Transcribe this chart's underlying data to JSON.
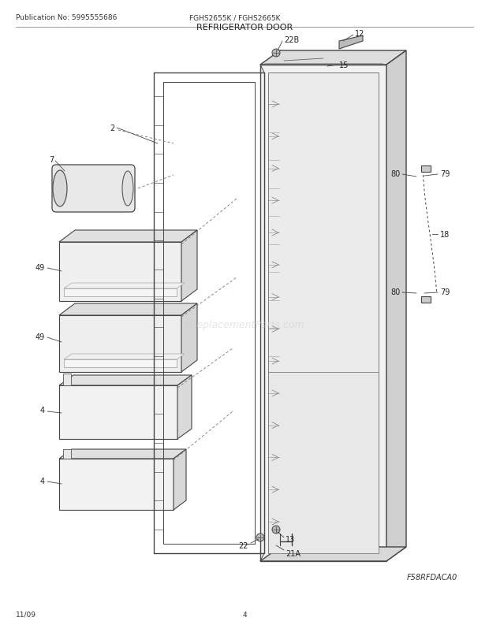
{
  "title": "REFRIGERATOR DOOR",
  "pub_no": "Publication No: 5995555686",
  "model": "FGHS2655K / FGHS2665K",
  "diagram_code": "F58RFDACA0",
  "date": "11/09",
  "page": "4",
  "bg_color": "#ffffff",
  "watermark": "eReplacementParts.com",
  "lc": "#444444",
  "lw": 0.9
}
